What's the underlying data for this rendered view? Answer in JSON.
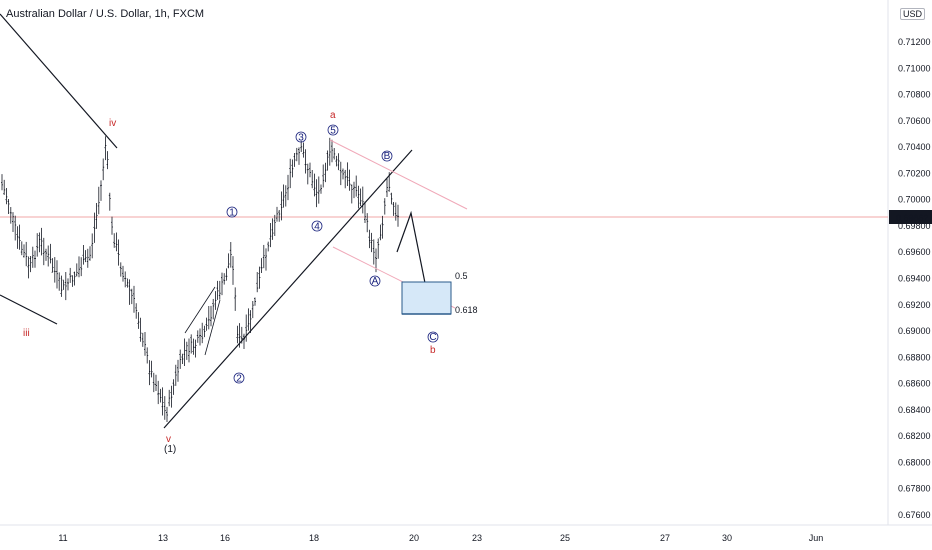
{
  "title": "Australian Dollar / U.S. Dollar, 1h, FXCM",
  "currency_label": "USD",
  "current_price": "0.69862",
  "colors": {
    "bar": "#131722",
    "price_line": "#f2a7a7",
    "channel": "#f0a8b8",
    "wave_red": "#c62828",
    "wave_blue": "#1a237e",
    "target_fill": "#d6e8f8",
    "target_border": "#2a5a8a",
    "fib_green": "#5b7a3a"
  },
  "chart_data": {
    "type": "ohlc",
    "symbol": "AUDUSD",
    "interval": "1h",
    "y_ticks": [
      "0.67600",
      "0.67800",
      "0.68000",
      "0.68200",
      "0.68400",
      "0.68600",
      "0.68800",
      "0.69000",
      "0.69200",
      "0.69400",
      "0.69600",
      "0.69800",
      "0.70000",
      "0.70200",
      "0.70400",
      "0.70600",
      "0.70800",
      "0.71000",
      "0.71200"
    ],
    "x_ticks": [
      "11",
      "13",
      "16",
      "18",
      "20",
      "23",
      "25",
      "27",
      "30",
      "Jun"
    ],
    "fib_levels": [
      "0.5",
      "0.618"
    ],
    "waves": [
      "iii",
      "iv",
      "v",
      "(1)",
      "1",
      "2",
      "3",
      "4",
      "5",
      "a",
      "A",
      "B",
      "C",
      "b"
    ]
  }
}
